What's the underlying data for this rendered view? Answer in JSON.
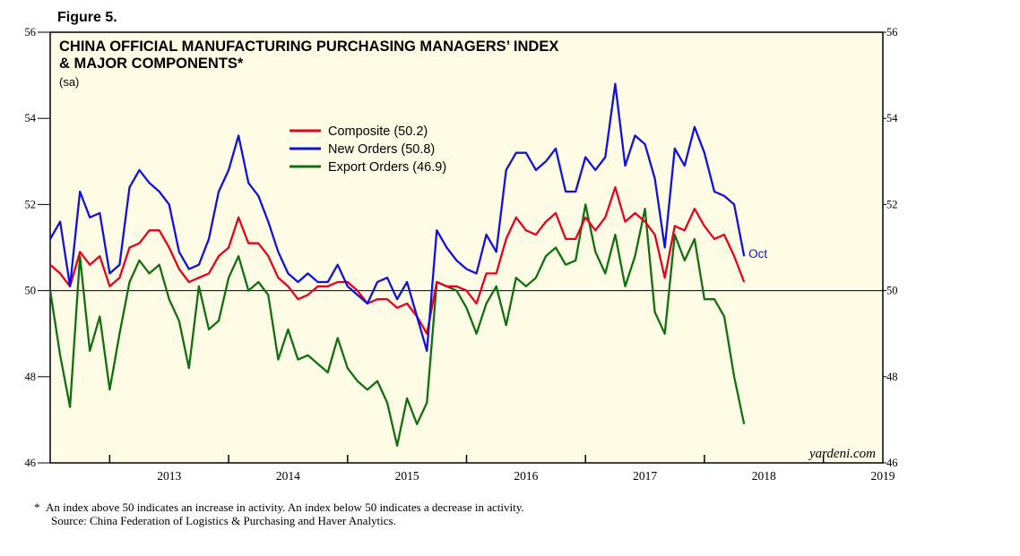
{
  "figure_label": "Figure 5.",
  "footnote": {
    "marker": "*",
    "text": "An index above 50 indicates an increase in activity. An index below 50 indicates a decrease in activity.",
    "source": "Source: China Federation of Logistics & Purchasing and Haver Analytics."
  },
  "colors": {
    "composite": "#e8001c",
    "new_orders": "#1010e0",
    "export_orders": "#107010",
    "plot_bg": "#fffde6"
  },
  "chart_data": {
    "type": "line",
    "title_line1": "CHINA OFFICIAL MANUFACTURING PURCHASING MANAGERS’ INDEX",
    "title_line2": "& MAJOR COMPONENTS*",
    "subtitle": "(sa)",
    "ylim": [
      46,
      56
    ],
    "yticks": [
      46,
      48,
      50,
      52,
      54,
      56
    ],
    "reference_line": 50,
    "x_start": 2012.5,
    "x_end": 2019.5,
    "year_labels": [
      "2013",
      "2014",
      "2015",
      "2016",
      "2017",
      "2018",
      "2019"
    ],
    "last_point_label": "Oct",
    "watermark": "yardeni.com",
    "series": [
      {
        "name": "Composite",
        "legend": "Composite (50.2)",
        "color_key": "composite",
        "values": [
          50.6,
          50.4,
          50.1,
          50.9,
          50.6,
          50.8,
          50.1,
          50.3,
          51.0,
          51.1,
          51.4,
          51.4,
          51.0,
          50.5,
          50.2,
          50.3,
          50.4,
          50.8,
          51.0,
          51.7,
          51.1,
          51.1,
          50.8,
          50.3,
          50.1,
          49.8,
          49.9,
          50.1,
          50.1,
          50.2,
          50.2,
          50.0,
          49.7,
          49.8,
          49.8,
          49.6,
          49.7,
          49.4,
          49.0,
          50.2,
          50.1,
          50.1,
          50.0,
          49.7,
          50.4,
          50.4,
          51.2,
          51.7,
          51.4,
          51.3,
          51.6,
          51.8,
          51.2,
          51.2,
          51.7,
          51.4,
          51.7,
          52.4,
          51.6,
          51.8,
          51.6,
          51.3,
          50.3,
          51.5,
          51.4,
          51.9,
          51.5,
          51.2,
          51.3,
          50.8,
          50.2
        ]
      },
      {
        "name": "New Orders",
        "legend": "New Orders (50.8)",
        "color_key": "new_orders",
        "values": [
          51.2,
          51.6,
          50.1,
          52.3,
          51.7,
          51.8,
          50.4,
          50.6,
          52.4,
          52.8,
          52.5,
          52.3,
          52.0,
          50.9,
          50.5,
          50.6,
          51.2,
          52.3,
          52.8,
          53.6,
          52.5,
          52.2,
          51.6,
          50.9,
          50.4,
          50.2,
          50.4,
          50.2,
          50.2,
          50.6,
          50.1,
          49.9,
          49.7,
          50.2,
          50.3,
          49.8,
          50.2,
          49.4,
          48.6,
          51.4,
          51.0,
          50.7,
          50.5,
          50.4,
          51.3,
          50.9,
          52.8,
          53.2,
          53.2,
          52.8,
          53.0,
          53.3,
          52.3,
          52.3,
          53.1,
          52.8,
          53.1,
          54.8,
          52.9,
          53.6,
          53.4,
          52.6,
          51.0,
          53.3,
          52.9,
          53.8,
          53.2,
          52.3,
          52.2,
          52.0,
          50.8
        ]
      },
      {
        "name": "Export Orders",
        "legend": "Export Orders (46.9)",
        "color_key": "export_orders",
        "values": [
          50.0,
          48.5,
          47.3,
          50.8,
          48.6,
          49.4,
          47.7,
          49.0,
          50.2,
          50.7,
          50.4,
          50.6,
          49.8,
          49.3,
          48.2,
          50.1,
          49.1,
          49.3,
          50.3,
          50.8,
          50.0,
          50.2,
          49.9,
          48.4,
          49.1,
          48.4,
          48.5,
          48.3,
          48.1,
          48.9,
          48.2,
          47.9,
          47.7,
          47.9,
          47.4,
          46.4,
          47.5,
          46.9,
          47.4,
          50.2,
          50.1,
          50.0,
          49.6,
          49.0,
          49.7,
          50.1,
          49.2,
          50.3,
          50.1,
          50.3,
          50.8,
          51.0,
          50.6,
          50.7,
          52.0,
          50.9,
          50.4,
          51.3,
          50.1,
          50.8,
          51.9,
          49.5,
          49.0,
          51.3,
          50.7,
          51.2,
          49.8,
          49.8,
          49.4,
          48.0,
          46.9
        ]
      }
    ]
  }
}
